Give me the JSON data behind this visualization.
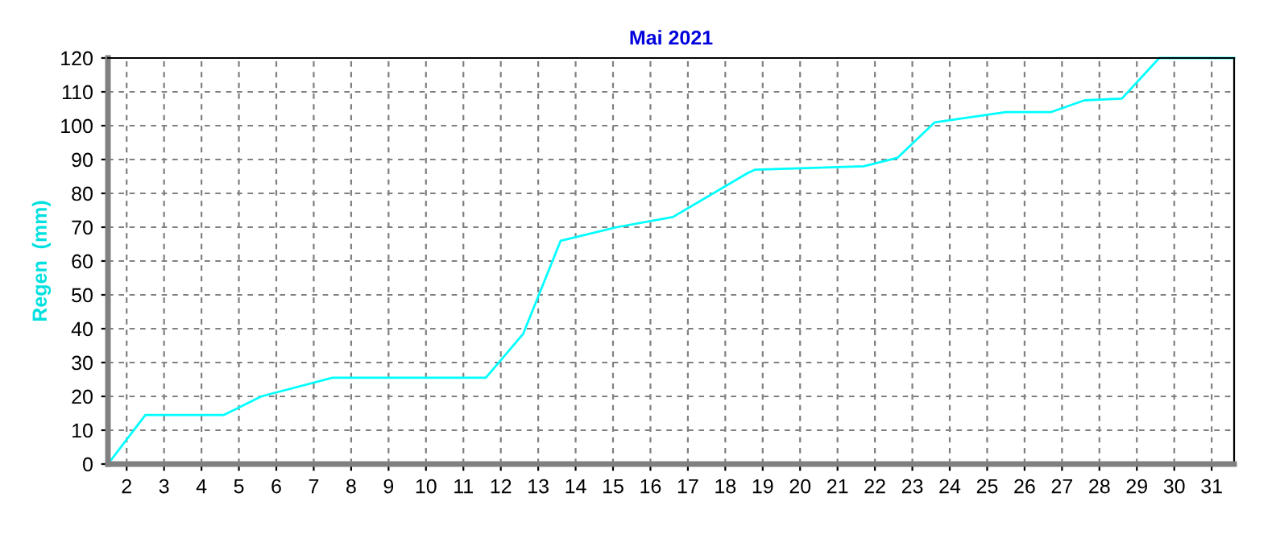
{
  "chart_data": {
    "type": "line",
    "title": "Mai 2021",
    "ylabel": "Regen  (mm)",
    "xlim": [
      1.5,
      31.6
    ],
    "xticks": [
      2,
      3,
      4,
      5,
      6,
      7,
      8,
      9,
      10,
      11,
      12,
      13,
      14,
      15,
      16,
      17,
      18,
      19,
      20,
      21,
      22,
      23,
      24,
      25,
      26,
      27,
      28,
      29,
      30,
      31
    ],
    "ylim": [
      0,
      120
    ],
    "yticks": [
      0,
      10,
      20,
      30,
      40,
      50,
      60,
      70,
      80,
      90,
      100,
      110,
      120
    ],
    "grid": true,
    "marker": "none",
    "line_style": "solid",
    "series": [
      {
        "color": "#00ffff",
        "x": [
          1.5,
          2.5,
          4.6,
          5.6,
          7.5,
          11.6,
          12.6,
          13.6,
          15.1,
          16.6,
          18.6,
          18.8,
          21.7,
          22.6,
          23.6,
          25.5,
          26.7,
          27.6,
          28.6,
          29.6,
          31.6
        ],
        "values": [
          0,
          14.5,
          14.5,
          20,
          25.5,
          25.5,
          38.5,
          66,
          70,
          73,
          86,
          87,
          88,
          90.5,
          101,
          104,
          104,
          107.5,
          108,
          120,
          120
        ]
      }
    ]
  }
}
